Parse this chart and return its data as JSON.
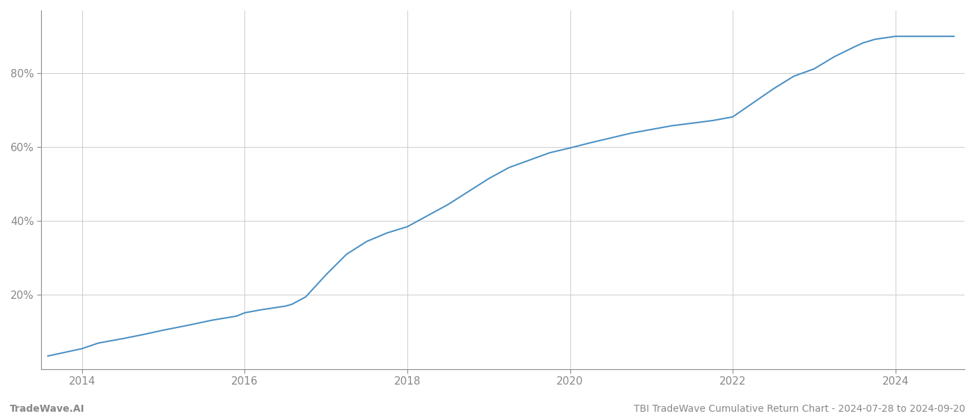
{
  "title": "TBI TradeWave Cumulative Return Chart - 2024-07-28 to 2024-09-20",
  "watermark": "TradeWave.AI",
  "line_color": "#4a90c4",
  "background_color": "#ffffff",
  "grid_color": "#cccccc",
  "x_years": [
    2014,
    2016,
    2018,
    2020,
    2022,
    2024
  ],
  "yticks": [
    0.2,
    0.4,
    0.6,
    0.8
  ],
  "ytick_labels": [
    "20%",
    "40%",
    "60%",
    "80%"
  ],
  "xlim": [
    2013.5,
    2024.85
  ],
  "ylim": [
    0.0,
    0.97
  ],
  "data_x": [
    2013.58,
    2014.0,
    2014.2,
    2014.5,
    2014.75,
    2015.0,
    2015.3,
    2015.6,
    2015.9,
    2016.0,
    2016.2,
    2016.5,
    2016.58,
    2016.75,
    2017.0,
    2017.25,
    2017.5,
    2017.75,
    2018.0,
    2018.25,
    2018.5,
    2018.75,
    2019.0,
    2019.25,
    2019.5,
    2019.75,
    2020.0,
    2020.25,
    2020.5,
    2020.75,
    2021.0,
    2021.25,
    2021.5,
    2021.75,
    2022.0,
    2022.25,
    2022.5,
    2022.75,
    2023.0,
    2023.25,
    2023.5,
    2023.6,
    2023.75,
    2024.0,
    2024.25,
    2024.5,
    2024.72
  ],
  "data_y": [
    0.035,
    0.055,
    0.07,
    0.082,
    0.093,
    0.105,
    0.118,
    0.132,
    0.143,
    0.152,
    0.16,
    0.17,
    0.175,
    0.195,
    0.255,
    0.31,
    0.345,
    0.368,
    0.385,
    0.415,
    0.445,
    0.48,
    0.515,
    0.545,
    0.565,
    0.585,
    0.598,
    0.612,
    0.625,
    0.638,
    0.648,
    0.658,
    0.665,
    0.672,
    0.682,
    0.72,
    0.758,
    0.792,
    0.812,
    0.845,
    0.872,
    0.882,
    0.892,
    0.9,
    0.9,
    0.9,
    0.9
  ],
  "spine_color": "#888888",
  "tick_color": "#888888",
  "footer_left": "TradeWave.AI",
  "footer_right": "TBI TradeWave Cumulative Return Chart - 2024-07-28 to 2024-09-20",
  "footer_color": "#888888",
  "footer_fontsize": 10,
  "line_width": 1.5
}
